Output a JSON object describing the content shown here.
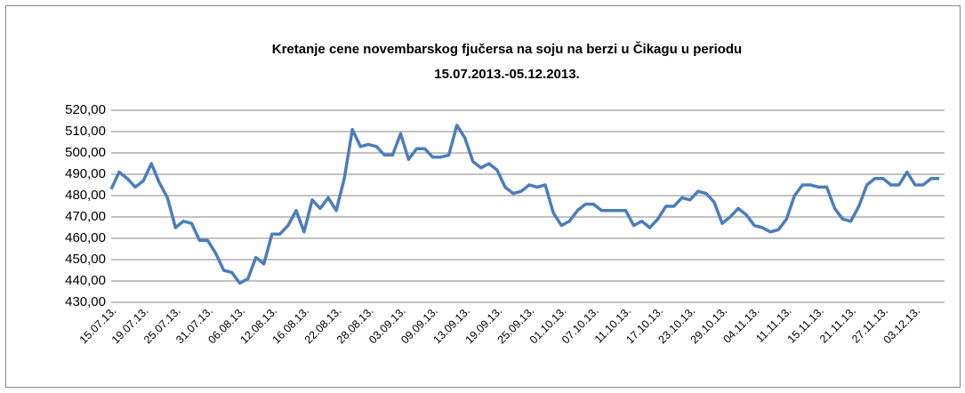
{
  "chart_data": {
    "type": "line",
    "title": [
      "Kretanje cene novembarskog fjučersa na soju na berzi u Čikagu u periodu",
      "15.07.2013.-05.12.2013."
    ],
    "categories": [
      "15.07.13.",
      null,
      null,
      null,
      "19.07.13.",
      null,
      null,
      null,
      "25.07.13.",
      null,
      null,
      null,
      "31.07.13.",
      null,
      null,
      null,
      "06.08.13.",
      null,
      null,
      null,
      "12.08.13.",
      null,
      null,
      null,
      "16.08.13.",
      null,
      null,
      null,
      "22.08.13.",
      null,
      null,
      null,
      "28.08.13.",
      null,
      null,
      null,
      "03.09.13.",
      null,
      null,
      null,
      "09.09.13.",
      null,
      null,
      null,
      "13.09.13.",
      null,
      null,
      null,
      "19.09.13.",
      null,
      null,
      null,
      "25.09.13.",
      null,
      null,
      null,
      "01.10.13.",
      null,
      null,
      null,
      "07.10.13.",
      null,
      null,
      null,
      "11.10.13.",
      null,
      null,
      null,
      "17.10.13.",
      null,
      null,
      null,
      "23.10.13.",
      null,
      null,
      null,
      "29.10.13.",
      null,
      null,
      null,
      "04.11.13.",
      null,
      null,
      null,
      "11.11.13.",
      null,
      null,
      null,
      "15.11.13.",
      null,
      null,
      null,
      "21.11.13.",
      null,
      null,
      null,
      "27.11.13.",
      null,
      null,
      null,
      "03.12.13.",
      null,
      null,
      null
    ],
    "series": [
      {
        "color": "#4a7ebb",
        "values": [
          483,
          491,
          488,
          484,
          487,
          495,
          486,
          479,
          465,
          468,
          467,
          459,
          459,
          453,
          445,
          444,
          439,
          441,
          451,
          448,
          462,
          462,
          466,
          473,
          463,
          478,
          474,
          479,
          473,
          488,
          511,
          503,
          504,
          503,
          499,
          499,
          509,
          497,
          502,
          502,
          498,
          498,
          499,
          513,
          507,
          496,
          493,
          495,
          492,
          484,
          481,
          482,
          485,
          484,
          485,
          472,
          466,
          468,
          473,
          476,
          476,
          473,
          473,
          473,
          473,
          466,
          468,
          465,
          469,
          475,
          475,
          479,
          478,
          482,
          481,
          477,
          467,
          470,
          474,
          471,
          466,
          465,
          463,
          464,
          469,
          480,
          485,
          485,
          484,
          484,
          474,
          469,
          468,
          475,
          485,
          488,
          488,
          485,
          485,
          491,
          485,
          485,
          488,
          488
        ]
      }
    ],
    "ylim": [
      430,
      520
    ],
    "yticks": [
      {
        "value": 430,
        "label": "430,00"
      },
      {
        "value": 440,
        "label": "440,00"
      },
      {
        "value": 450,
        "label": "450,00"
      },
      {
        "value": 460,
        "label": "460,00"
      },
      {
        "value": 470,
        "label": "470,00"
      },
      {
        "value": 480,
        "label": "480,00"
      },
      {
        "value": 490,
        "label": "490,00"
      },
      {
        "value": 500,
        "label": "500,00"
      },
      {
        "value": 510,
        "label": "510,00"
      },
      {
        "value": 520,
        "label": "520,00"
      }
    ],
    "grid": true
  }
}
